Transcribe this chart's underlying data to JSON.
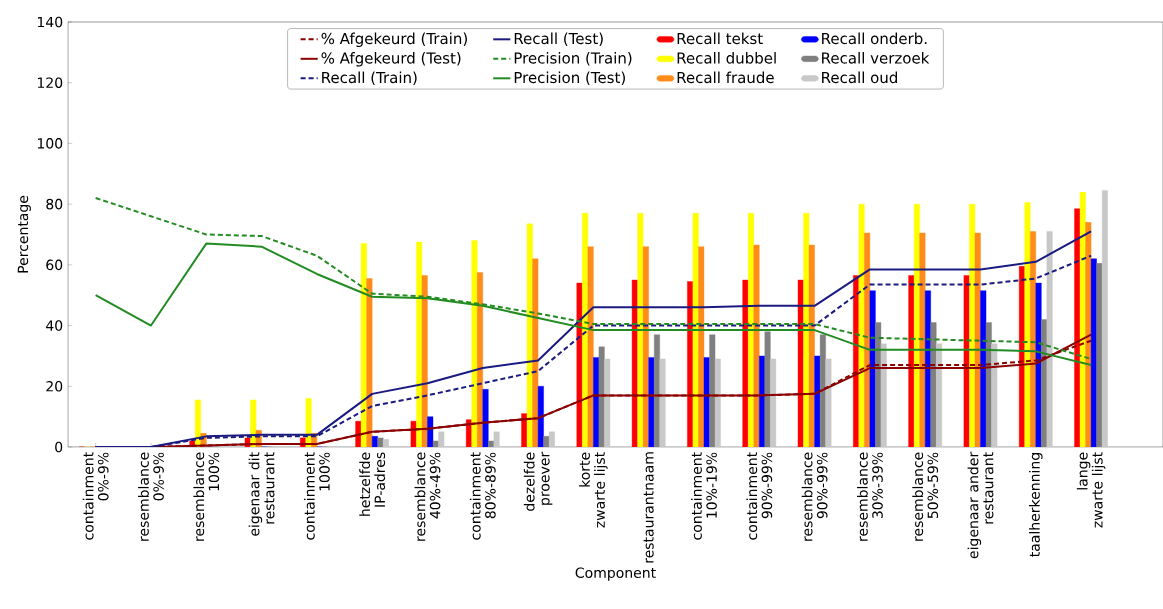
{
  "chart_data": {
    "type": "bar",
    "xlabel": "Component",
    "ylabel": "Percentage",
    "categories": [
      "containment 0%-9%",
      "resemblance 0%-9%",
      "resemblance 100%",
      "eigenaar dit restaurant",
      "containment 100%",
      "hetzelfde IP-adres",
      "resemblance 40%-49%",
      "containment 80%-89%",
      "dezelfde proever",
      "korte zwarte lijst",
      "restaurantnaam",
      "containment 10%-19%",
      "containment 90%-99%",
      "resemblance 90%-99%",
      "resemblance 30%-39%",
      "resemblance 50%-59%",
      "eigenaar ander restaurant",
      "taalherkenning",
      "lange zwarte lijst"
    ],
    "ylim": [
      0,
      140
    ],
    "yticks": [
      0,
      20,
      40,
      60,
      80,
      100,
      120,
      140
    ],
    "legend": "top",
    "series": [
      {
        "name": "% Afgekeurd (Train)",
        "type": "line",
        "line_style": "dashed",
        "color": "#8b0000",
        "values": [
          0,
          0,
          0.5,
          1,
          1,
          5,
          6,
          8,
          9.5,
          17,
          17,
          17,
          17,
          17.5,
          27,
          27,
          27,
          28.5,
          35
        ]
      },
      {
        "name": "% Afgekeurd (Test)",
        "type": "line",
        "line_style": "solid",
        "color": "#8b0000",
        "values": [
          0,
          0,
          0.5,
          1,
          1,
          5,
          6,
          8,
          9.5,
          17,
          17,
          17,
          17,
          17.5,
          26,
          26,
          26,
          27.5,
          37
        ]
      },
      {
        "name": "Recall (Train)",
        "type": "line",
        "line_style": "dashed",
        "color": "#1a1a80",
        "values": [
          0,
          0,
          3,
          3.5,
          3.5,
          13.5,
          17,
          21,
          25,
          40,
          40,
          40,
          40,
          40,
          53.5,
          53.5,
          53.5,
          55.5,
          63
        ]
      },
      {
        "name": "Recall (Test)",
        "type": "line",
        "line_style": "solid",
        "color": "#1a1a80",
        "values": [
          0,
          0,
          3.5,
          4,
          4,
          17.5,
          21,
          26,
          28.5,
          46,
          46,
          46,
          46.5,
          46.5,
          58.5,
          58.5,
          58.5,
          61,
          71
        ]
      },
      {
        "name": "Precision (Train)",
        "type": "line",
        "line_style": "dashed",
        "color": "#228b22",
        "values": [
          82,
          76,
          70,
          69.5,
          63,
          50.5,
          49.5,
          47,
          44,
          40.5,
          40.5,
          40.5,
          40.5,
          40.5,
          36,
          35.5,
          35,
          34.5,
          29
        ]
      },
      {
        "name": "Precision (Test)",
        "type": "line",
        "line_style": "solid",
        "color": "#228b22",
        "values": [
          50,
          40,
          67,
          66,
          57,
          49.5,
          49,
          46.5,
          42.5,
          38.5,
          38.5,
          38.5,
          38.5,
          38.5,
          32,
          32,
          32,
          31.5,
          27
        ]
      },
      {
        "name": "Recall tekst",
        "color": "#ff0000",
        "values": [
          0,
          0,
          2,
          3,
          3,
          8.5,
          8.5,
          9,
          11,
          54,
          55,
          54.5,
          55,
          55,
          56.5,
          56.5,
          56.5,
          59.5,
          78.5
        ]
      },
      {
        "name": "Recall dubbel",
        "color": "#ffff00",
        "values": [
          0,
          0,
          15.5,
          15.5,
          16,
          67,
          67.5,
          68,
          73.5,
          77,
          77,
          77,
          77,
          77,
          80,
          80,
          80,
          80.5,
          84
        ]
      },
      {
        "name": "Recall fraude",
        "color": "#ff8c1a",
        "values": [
          0,
          0,
          4.5,
          5.5,
          4.5,
          55.5,
          56.5,
          57.5,
          62,
          66,
          66,
          66,
          66.5,
          66.5,
          70.5,
          70.5,
          70.5,
          71,
          74
        ]
      },
      {
        "name": "Recall onderb.",
        "color": "#0000ff",
        "values": [
          0,
          0,
          0,
          0,
          0,
          3.5,
          10,
          19,
          20,
          29.5,
          29.5,
          29.5,
          30,
          30,
          51.5,
          51.5,
          51.5,
          54,
          62
        ]
      },
      {
        "name": "Recall verzoek",
        "color": "#808080",
        "values": [
          0,
          0,
          0,
          0,
          0,
          3,
          2,
          2,
          3.5,
          33,
          37,
          37,
          38,
          37,
          41,
          41,
          41,
          42,
          60.5
        ]
      },
      {
        "name": "Recall oud",
        "color": "#c8c8c8",
        "values": [
          0,
          0,
          0,
          0,
          0,
          2.5,
          5,
          5,
          5,
          29,
          29,
          29,
          29,
          29,
          34,
          34,
          34,
          71,
          84.5
        ]
      }
    ]
  }
}
